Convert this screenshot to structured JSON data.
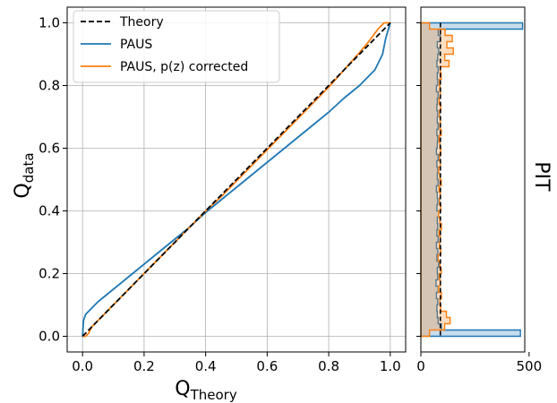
{
  "chart_data": [
    {
      "type": "line",
      "xlabel": "Q",
      "xlabel_sub": "Theory",
      "ylabel": "Q",
      "ylabel_sub": "data",
      "xlim": [
        -0.05,
        1.05
      ],
      "ylim": [
        -0.05,
        1.05
      ],
      "xticks": [
        "0.0",
        "0.2",
        "0.4",
        "0.6",
        "0.8",
        "1.0"
      ],
      "yticks": [
        "0.0",
        "0.2",
        "0.4",
        "0.6",
        "0.8",
        "1.0"
      ],
      "grid": true,
      "legend_position": "top-left",
      "series": [
        {
          "name": "Theory",
          "color": "#000000",
          "dashed": true,
          "x": [
            0.0,
            1.0
          ],
          "y": [
            0.0,
            1.0
          ]
        },
        {
          "name": "PAUS",
          "color": "#1f77b4",
          "x": [
            0.0,
            0.003,
            0.01,
            0.02,
            0.05,
            0.1,
            0.15,
            0.2,
            0.25,
            0.3,
            0.35,
            0.4,
            0.45,
            0.5,
            0.55,
            0.6,
            0.65,
            0.7,
            0.75,
            0.8,
            0.85,
            0.9,
            0.95,
            0.975,
            0.985,
            1.0
          ],
          "y": [
            0.0,
            0.05,
            0.07,
            0.08,
            0.11,
            0.15,
            0.19,
            0.23,
            0.27,
            0.31,
            0.35,
            0.395,
            0.435,
            0.475,
            0.515,
            0.555,
            0.595,
            0.635,
            0.675,
            0.715,
            0.76,
            0.8,
            0.85,
            0.9,
            0.95,
            1.0
          ]
        },
        {
          "name": "PAUS, p(z) corrected",
          "color": "#ff7f0e",
          "x": [
            0.0,
            0.01,
            0.02,
            0.03,
            0.05,
            0.1,
            0.15,
            0.2,
            0.25,
            0.3,
            0.35,
            0.4,
            0.45,
            0.5,
            0.55,
            0.6,
            0.65,
            0.7,
            0.75,
            0.8,
            0.85,
            0.9,
            0.93,
            0.96,
            0.98,
            1.0
          ],
          "y": [
            0.0,
            0.0,
            0.01,
            0.03,
            0.05,
            0.1,
            0.15,
            0.2,
            0.25,
            0.3,
            0.35,
            0.4,
            0.445,
            0.495,
            0.545,
            0.595,
            0.645,
            0.695,
            0.745,
            0.795,
            0.85,
            0.905,
            0.94,
            0.98,
            1.0,
            1.0
          ]
        }
      ]
    },
    {
      "type": "bar",
      "orientation": "horizontal",
      "ylabel": "PIT",
      "xlim": [
        0,
        480
      ],
      "xticks": [
        "0",
        "500"
      ],
      "xtick_values": [
        0,
        500
      ],
      "theory_level": 90,
      "bin_edges": [
        0.0,
        0.02,
        0.04,
        0.06,
        0.08,
        0.1,
        0.12,
        0.14,
        0.16,
        0.18,
        0.2,
        0.22,
        0.24,
        0.26,
        0.28,
        0.3,
        0.32,
        0.34,
        0.36,
        0.38,
        0.4,
        0.42,
        0.44,
        0.46,
        0.48,
        0.5,
        0.52,
        0.54,
        0.56,
        0.58,
        0.6,
        0.62,
        0.64,
        0.66,
        0.68,
        0.7,
        0.72,
        0.74,
        0.76,
        0.78,
        0.8,
        0.82,
        0.84,
        0.86,
        0.88,
        0.9,
        0.92,
        0.94,
        0.96,
        0.98,
        1.0
      ],
      "series": [
        {
          "name": "PAUS",
          "color": "#1f77b4",
          "values": [
            460,
            95,
            80,
            76,
            74,
            78,
            72,
            80,
            70,
            78,
            76,
            82,
            74,
            78,
            72,
            80,
            74,
            78,
            76,
            82,
            74,
            78,
            76,
            72,
            80,
            76,
            78,
            74,
            80,
            72,
            76,
            78,
            74,
            80,
            76,
            78,
            74,
            76,
            80,
            72,
            78,
            76,
            80,
            74,
            78,
            82,
            76,
            90,
            80,
            470
          ]
        },
        {
          "name": "PAUS, p(z) corrected",
          "color": "#ff7f0e",
          "values": [
            40,
            110,
            135,
            118,
            92,
            88,
            95,
            82,
            90,
            85,
            94,
            88,
            80,
            92,
            86,
            90,
            84,
            95,
            88,
            82,
            92,
            86,
            90,
            84,
            94,
            88,
            82,
            90,
            86,
            92,
            88,
            84,
            94,
            88,
            90,
            86,
            92,
            84,
            90,
            88,
            86,
            94,
            90,
            130,
            110,
            150,
            120,
            145,
            112,
            40
          ]
        }
      ]
    }
  ]
}
